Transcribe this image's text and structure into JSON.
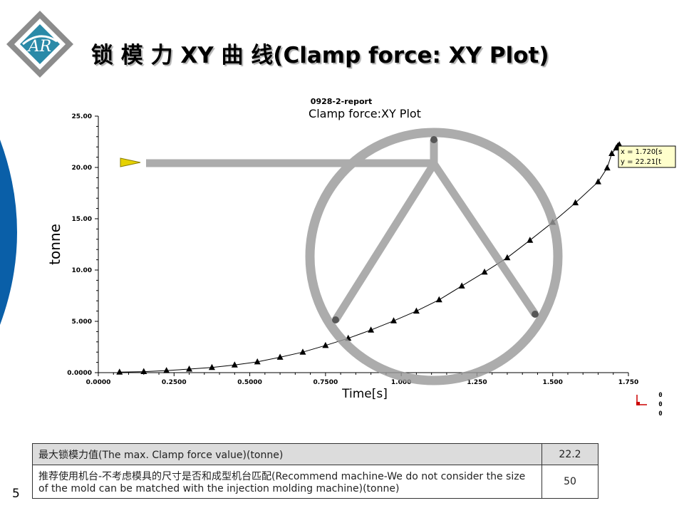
{
  "slide": {
    "title": "锁 模 力 XY 曲 线(Clamp force: XY Plot)",
    "logo_text": "AR",
    "page_number": "5"
  },
  "chart_data": {
    "type": "scatter",
    "subtitle": "0928-2-report",
    "title": "Clamp force:XY Plot",
    "xlabel": "Time[s]",
    "ylabel": "tonne",
    "xlim": [
      0,
      1.75
    ],
    "ylim": [
      0,
      25
    ],
    "x_ticks": [
      {
        "value": 0,
        "label": "0.0000"
      },
      {
        "value": 0.25,
        "label": "0.2500"
      },
      {
        "value": 0.5,
        "label": "0.5000"
      },
      {
        "value": 0.75,
        "label": "0.7500"
      },
      {
        "value": 1.0,
        "label": "1.000"
      },
      {
        "value": 1.25,
        "label": "1.250"
      },
      {
        "value": 1.5,
        "label": "1.500"
      },
      {
        "value": 1.75,
        "label": "1.750"
      }
    ],
    "y_ticks": [
      {
        "value": 0,
        "label": "0.0000"
      },
      {
        "value": 5,
        "label": "5.000"
      },
      {
        "value": 10,
        "label": "10.00"
      },
      {
        "value": 15,
        "label": "15.00"
      },
      {
        "value": 20,
        "label": "20.00"
      },
      {
        "value": 25,
        "label": "25.00"
      }
    ],
    "series": [
      {
        "marker": "triangle",
        "color": "#000000",
        "x": [
          0.07,
          0.15,
          0.225,
          0.3,
          0.375,
          0.45,
          0.525,
          0.6,
          0.675,
          0.75,
          0.825,
          0.9,
          0.975,
          1.05,
          1.125,
          1.2,
          1.275,
          1.35,
          1.425,
          1.5,
          1.575,
          1.65,
          1.68,
          1.695,
          1.71,
          1.715,
          1.72
        ],
        "y": [
          0.05,
          0.1,
          0.2,
          0.35,
          0.5,
          0.75,
          1.05,
          1.5,
          2.0,
          2.65,
          3.35,
          4.15,
          5.05,
          6.0,
          7.1,
          8.45,
          9.8,
          11.2,
          12.9,
          14.65,
          16.55,
          18.6,
          19.95,
          21.35,
          21.9,
          22.1,
          22.21
        ]
      }
    ],
    "annotation": {
      "x_text": "x = 1.720[s",
      "y_text": "y = 22.21[t"
    },
    "grid": false,
    "axis_corner": [
      "0",
      "0",
      "0"
    ]
  },
  "colors": {
    "watermark": "#9a9a9a",
    "logo_teal": "#2a8aa8",
    "logo_gray": "#8c8c8c",
    "accent_blue": "#0a5fa8",
    "annotation_bg": "#ffffcc",
    "highlight_row": "#dcdcdc"
  },
  "table": {
    "rows": [
      {
        "label": "最大锁模力值(The max. Clamp force value)(tonne)",
        "value": "22.2"
      },
      {
        "label": "推荐使用机台-不考虑模具的尺寸是否和成型机台匹配(Recommend machine-We  do not consider the size of the mold can be matched with the injection molding machine)(tonne)",
        "value": "50"
      }
    ]
  }
}
